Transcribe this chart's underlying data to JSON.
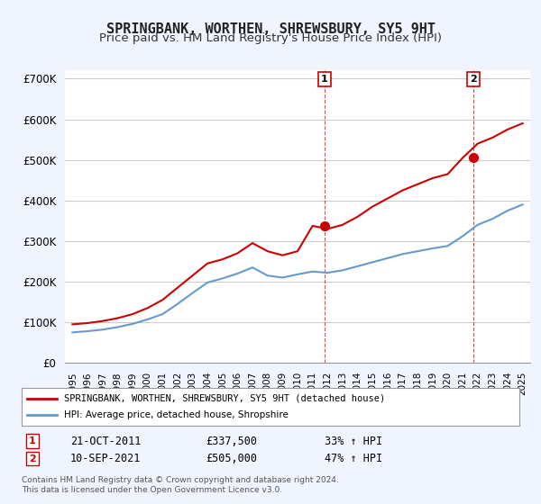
{
  "title": "SPRINGBANK, WORTHEN, SHREWSBURY, SY5 9HT",
  "subtitle": "Price paid vs. HM Land Registry's House Price Index (HPI)",
  "title_fontsize": 11,
  "subtitle_fontsize": 9.5,
  "ylabel_ticks": [
    "£0",
    "£100K",
    "£200K",
    "£300K",
    "£400K",
    "£500K",
    "£600K",
    "£700K"
  ],
  "ytick_vals": [
    0,
    100000,
    200000,
    300000,
    400000,
    500000,
    600000,
    700000
  ],
  "ylim": [
    0,
    720000
  ],
  "xlim_start": 1994.5,
  "xlim_end": 2025.5,
  "red_line_color": "#cc0000",
  "blue_line_color": "#6699cc",
  "sale_marker_color": "#cc0000",
  "annotation_line_color": "#cc0000",
  "legend_label_red": "SPRINGBANK, WORTHEN, SHREWSBURY, SY5 9HT (detached house)",
  "legend_label_blue": "HPI: Average price, detached house, Shropshire",
  "sale1_label": "1",
  "sale1_date": "21-OCT-2011",
  "sale1_price": "£337,500",
  "sale1_pct": "33% ↑ HPI",
  "sale1_x": 2011.8,
  "sale1_y": 337500,
  "sale2_label": "2",
  "sale2_date": "10-SEP-2021",
  "sale2_price": "£505,000",
  "sale2_pct": "47% ↑ HPI",
  "sale2_x": 2021.7,
  "sale2_y": 505000,
  "footnote": "Contains HM Land Registry data © Crown copyright and database right 2024.\nThis data is licensed under the Open Government Licence v3.0.",
  "background_color": "#f0f4ff",
  "plot_bg_color": "#ffffff",
  "grid_color": "#cccccc"
}
